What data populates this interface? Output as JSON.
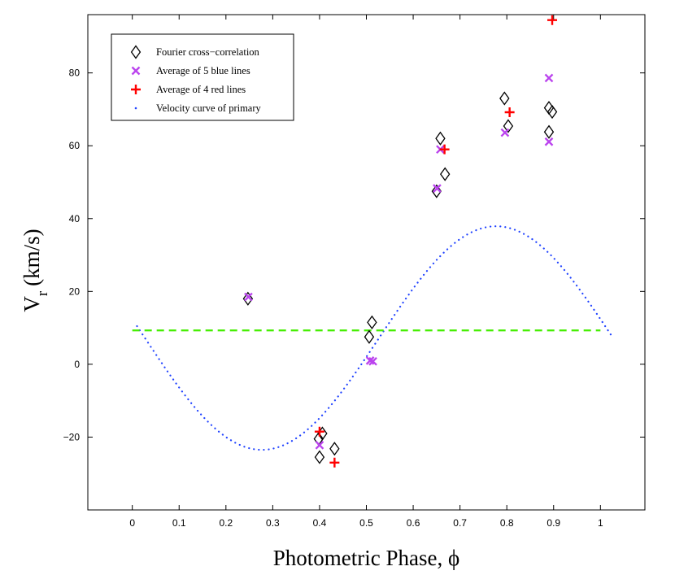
{
  "chart_data": {
    "type": "scatter",
    "xlabel": "Photometric Phase, ϕ",
    "ylabel_main": "V",
    "ylabel_sub": "r",
    "ylabel_units": "(km/s)",
    "xlim": [
      -0.095,
      1.095
    ],
    "ylim": [
      -40,
      96
    ],
    "xticks": [
      0,
      0.1,
      0.2,
      0.3,
      0.4,
      0.5,
      0.6,
      0.7,
      0.8,
      0.9,
      1
    ],
    "xtick_labels": [
      "0",
      "0.1",
      "0.2",
      "0.3",
      "0.4",
      "0.5",
      "0.6",
      "0.7",
      "0.8",
      "0.9",
      "1"
    ],
    "yticks": [
      -20,
      0,
      20,
      40,
      60,
      80
    ],
    "ytick_labels": [
      "−20",
      "0",
      "20",
      "40",
      "60",
      "80"
    ],
    "legend_position": "top-left",
    "legend": [
      {
        "label": "Fourier cross−correlation",
        "marker": "diamond",
        "color": "#000000"
      },
      {
        "label": "Average of 5 blue lines",
        "marker": "x",
        "color": "#bb44ee"
      },
      {
        "label": "Average of 4 red lines",
        "marker": "plus",
        "color": "#ff0000"
      },
      {
        "label": "Velocity curve of primary",
        "marker": "dot",
        "color": "#2244ff"
      }
    ],
    "series": [
      {
        "name": "Fourier cross−correlation",
        "marker": "diamond",
        "color": "#000000",
        "points": [
          [
            0.247,
            18
          ],
          [
            0.398,
            -20.5
          ],
          [
            0.406,
            -19
          ],
          [
            0.4,
            -25.5
          ],
          [
            0.432,
            -23.2
          ],
          [
            0.506,
            7.5
          ],
          [
            0.512,
            11.5
          ],
          [
            0.65,
            47.5
          ],
          [
            0.658,
            62
          ],
          [
            0.668,
            52.2
          ],
          [
            0.795,
            73
          ],
          [
            0.803,
            65.4
          ],
          [
            0.89,
            70.4
          ],
          [
            0.897,
            69.3
          ],
          [
            0.89,
            63.8
          ]
        ]
      },
      {
        "name": "Average of 5 blue lines",
        "marker": "x",
        "color": "#bb44ee",
        "points": [
          [
            0.248,
            18.5
          ],
          [
            0.4,
            -22.2
          ],
          [
            0.508,
            1
          ],
          [
            0.514,
            0.8
          ],
          [
            0.651,
            48.3
          ],
          [
            0.658,
            59
          ],
          [
            0.796,
            63.6
          ],
          [
            0.89,
            78.6
          ],
          [
            0.89,
            61.1
          ]
        ]
      },
      {
        "name": "Average of 4 red lines",
        "marker": "plus",
        "color": "#ff0000",
        "points": [
          [
            0.4,
            -18.5
          ],
          [
            0.432,
            -27
          ],
          [
            0.667,
            59
          ],
          [
            0.806,
            69.2
          ],
          [
            0.897,
            94.5
          ]
        ]
      }
    ],
    "velocity_curve": {
      "name": "Velocity curve of primary",
      "type": "sine",
      "gamma": 7.2,
      "amplitude": 30.7,
      "phase_of_minimum": 0.277,
      "x_range": [
        0.01,
        1.025
      ],
      "color": "#2244ff",
      "style": "dotted"
    },
    "systemic_velocity_line": {
      "y": 9.3,
      "x_range": [
        0,
        1
      ],
      "color": "#44ee00",
      "style": "dashed"
    }
  }
}
